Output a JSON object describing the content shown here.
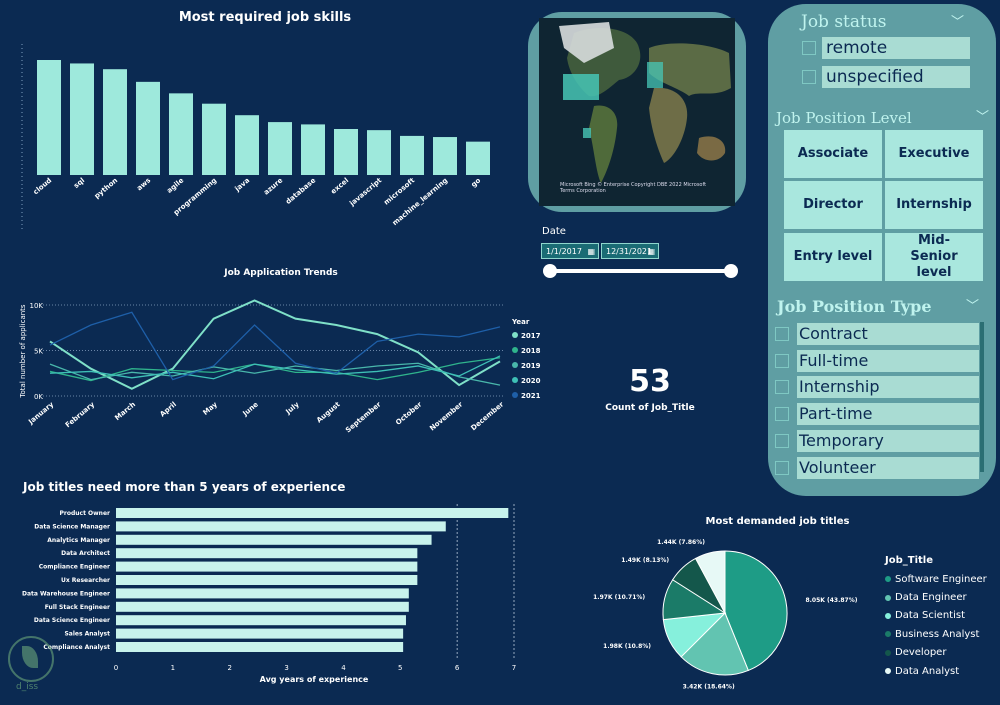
{
  "skills_chart": {
    "title": "Most required job skills",
    "chart_data": {
      "type": "bar",
      "categories": [
        "cloud",
        "sql",
        "python",
        "aws",
        "agile",
        "programming",
        "java",
        "azure",
        "database",
        "excel",
        "javascript",
        "microsoft",
        "machine_learning",
        "go"
      ],
      "values": [
        100,
        97,
        92,
        81,
        71,
        62,
        52,
        46,
        44,
        40,
        39,
        34,
        33,
        29
      ],
      "ylim": [
        0,
        100
      ]
    }
  },
  "trend_chart": {
    "title": "Job Application Trends",
    "chart_data": {
      "type": "line",
      "x": [
        "January",
        "February",
        "March",
        "April",
        "May",
        "June",
        "July",
        "August",
        "September",
        "October",
        "November",
        "December"
      ],
      "ylabel": "Total number of applicants",
      "yticks": [
        "0K",
        "5K",
        "10K"
      ],
      "ylim": [
        0,
        10000
      ],
      "legend_title": "Year",
      "series": [
        {
          "name": "2017",
          "color": "#7fe0c8",
          "values": [
            6000,
            3000,
            800,
            3000,
            8500,
            10500,
            8500,
            7800,
            6800,
            4800,
            1200,
            3800
          ]
        },
        {
          "name": "2018",
          "color": "#2fb48c",
          "values": [
            2700,
            1700,
            3000,
            2800,
            2600,
            3500,
            2600,
            2600,
            1800,
            2600,
            3600,
            4200
          ]
        },
        {
          "name": "2019",
          "color": "#49b7ab",
          "values": [
            3500,
            1800,
            2600,
            2200,
            3200,
            2500,
            3300,
            2800,
            3300,
            3600,
            2100,
            1200
          ]
        },
        {
          "name": "2020",
          "color": "#3ec0b6",
          "values": [
            2500,
            2700,
            2000,
            2600,
            1900,
            3500,
            2900,
            2400,
            2700,
            3300,
            2200,
            4400
          ]
        },
        {
          "name": "2021",
          "color": "#1e5fa8",
          "values": [
            5600,
            7800,
            9200,
            1800,
            3300,
            7800,
            3600,
            2500,
            6000,
            6800,
            6500,
            7600
          ]
        }
      ]
    }
  },
  "date_slicer": {
    "label": "Date",
    "start": "1/1/2017",
    "end": "12/31/2021"
  },
  "card": {
    "value": "53",
    "label": "Count of Job_Title"
  },
  "map": {
    "attribution": "Microsoft Bing  © Enterprise Copyright DBE 2022 Microsoft Terms Corporation"
  },
  "experience_chart": {
    "title": "Job titles need more than 5 years of experience",
    "chart_data": {
      "type": "bar",
      "orientation": "horizontal",
      "categories": [
        "Product Owner",
        "Data Science Manager",
        "Analytics Manager",
        "Data Architect",
        "Compliance Engineer",
        "Ux Researcher",
        "Data Warehouse Engineer",
        "Full Stack Engineer",
        "Data Science Engineer",
        "Sales Analyst",
        "Compliance Analyst"
      ],
      "values": [
        6.9,
        5.8,
        5.55,
        5.3,
        5.3,
        5.3,
        5.15,
        5.15,
        5.1,
        5.05,
        5.05
      ],
      "xlabel": "Avg years of experience",
      "xlim": [
        0,
        7
      ],
      "xticks": [
        "0",
        "1",
        "2",
        "3",
        "4",
        "5",
        "6",
        "7"
      ]
    }
  },
  "pie_chart": {
    "title": "Most demanded job titles",
    "legend_title": "Job_Title",
    "chart_data": {
      "type": "pie",
      "series": [
        {
          "name": "Software Engineer",
          "value": "8.05K",
          "pct": "43.87%",
          "share": 43.87,
          "color": "#1e9c86"
        },
        {
          "name": "Data Engineer",
          "value": "3.42K",
          "pct": "18.64%",
          "share": 18.64,
          "color": "#62c4b1"
        },
        {
          "name": "Data Scientist",
          "value": "1.98K",
          "pct": "10.8%",
          "share": 10.8,
          "color": "#86f0dc"
        },
        {
          "name": "Business Analyst",
          "value": "1.97K",
          "pct": "10.71%",
          "share": 10.71,
          "color": "#1b7b68"
        },
        {
          "name": "Developer",
          "value": "1.49K",
          "pct": "8.13%",
          "share": 8.13,
          "color": "#14574b"
        },
        {
          "name": "Data Analyst",
          "value": "1.44K",
          "pct": "7.86%",
          "share": 7.86,
          "color": "#e7f9f6"
        }
      ]
    }
  },
  "slicers": {
    "job_status": {
      "title": "Job status",
      "options": [
        "remote",
        "unspecified"
      ]
    },
    "position_level": {
      "title": "Job Position Level",
      "options": [
        "Associate",
        "Executive",
        "Director",
        "Internship",
        "Entry level",
        "Mid-Senior level"
      ]
    },
    "position_type": {
      "title": "Job Position Type",
      "options": [
        "Contract",
        "Full-time",
        "Internship",
        "Part-time",
        "Temporary",
        "Volunteer"
      ]
    }
  },
  "watermark": {
    "text": "d_iss"
  },
  "colors": {
    "background": "#0b2a52",
    "bar": "#9ee9dc",
    "panel": "#5f9ea3",
    "accent": "#a9dcd3"
  }
}
